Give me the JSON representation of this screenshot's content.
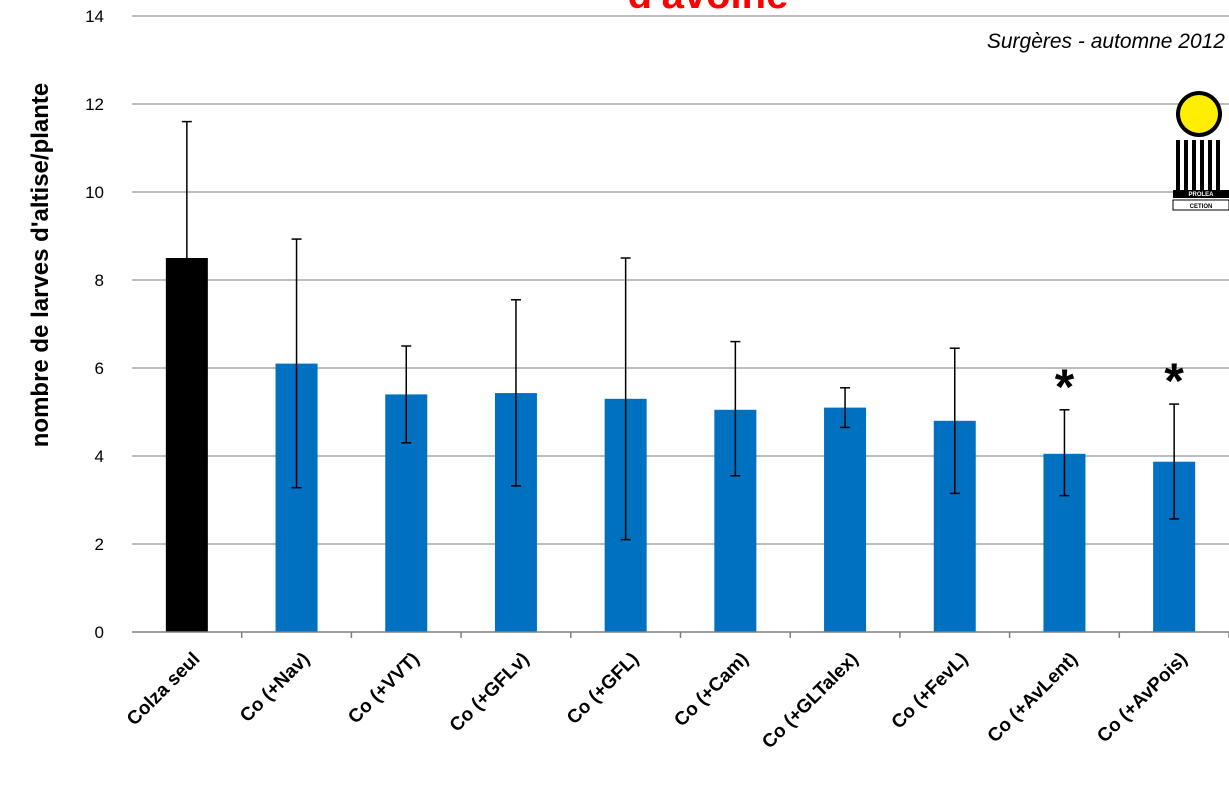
{
  "chart_data": {
    "type": "bar",
    "title": "d'avoine",
    "subtitle": "Surgères - automne 2012",
    "xlabel": "",
    "ylabel": "nombre de larves d'altise/plante",
    "ylim": [
      0,
      14
    ],
    "yticks": [
      0,
      2,
      4,
      6,
      8,
      10,
      12,
      14
    ],
    "grid": true,
    "categories": [
      "Colza seul",
      "Co (+Nav)",
      "Co (+VVT)",
      "Co (+GFLv)",
      "Co (+GFL)",
      "Co (+Cam)",
      "Co (+GLTalex)",
      "Co (+FevL)",
      "Co (+AvLent)",
      "Co (+AvPois)"
    ],
    "values": [
      8.5,
      6.1,
      5.4,
      5.43,
      5.3,
      5.05,
      5.1,
      4.8,
      4.05,
      3.87
    ],
    "error_upper": [
      11.6,
      8.93,
      6.5,
      7.55,
      8.5,
      6.6,
      5.55,
      6.45,
      5.05,
      5.18
    ],
    "error_lower": [
      8.5,
      3.28,
      4.3,
      3.32,
      2.1,
      3.55,
      4.65,
      3.15,
      3.1,
      2.57
    ],
    "significance": [
      "",
      "",
      "",
      "",
      "",
      "",
      "",
      "",
      "*",
      "*"
    ],
    "colors": {
      "control": "#000000",
      "treatment": "#0070C0",
      "title": "#FF0000",
      "grid": "#A6A6A6",
      "logo_disc": "#FFEE00"
    }
  },
  "logo": {
    "icon": "proleaction-logo-icon",
    "text_top": "PROLEA",
    "text_bottom": "CETION"
  }
}
